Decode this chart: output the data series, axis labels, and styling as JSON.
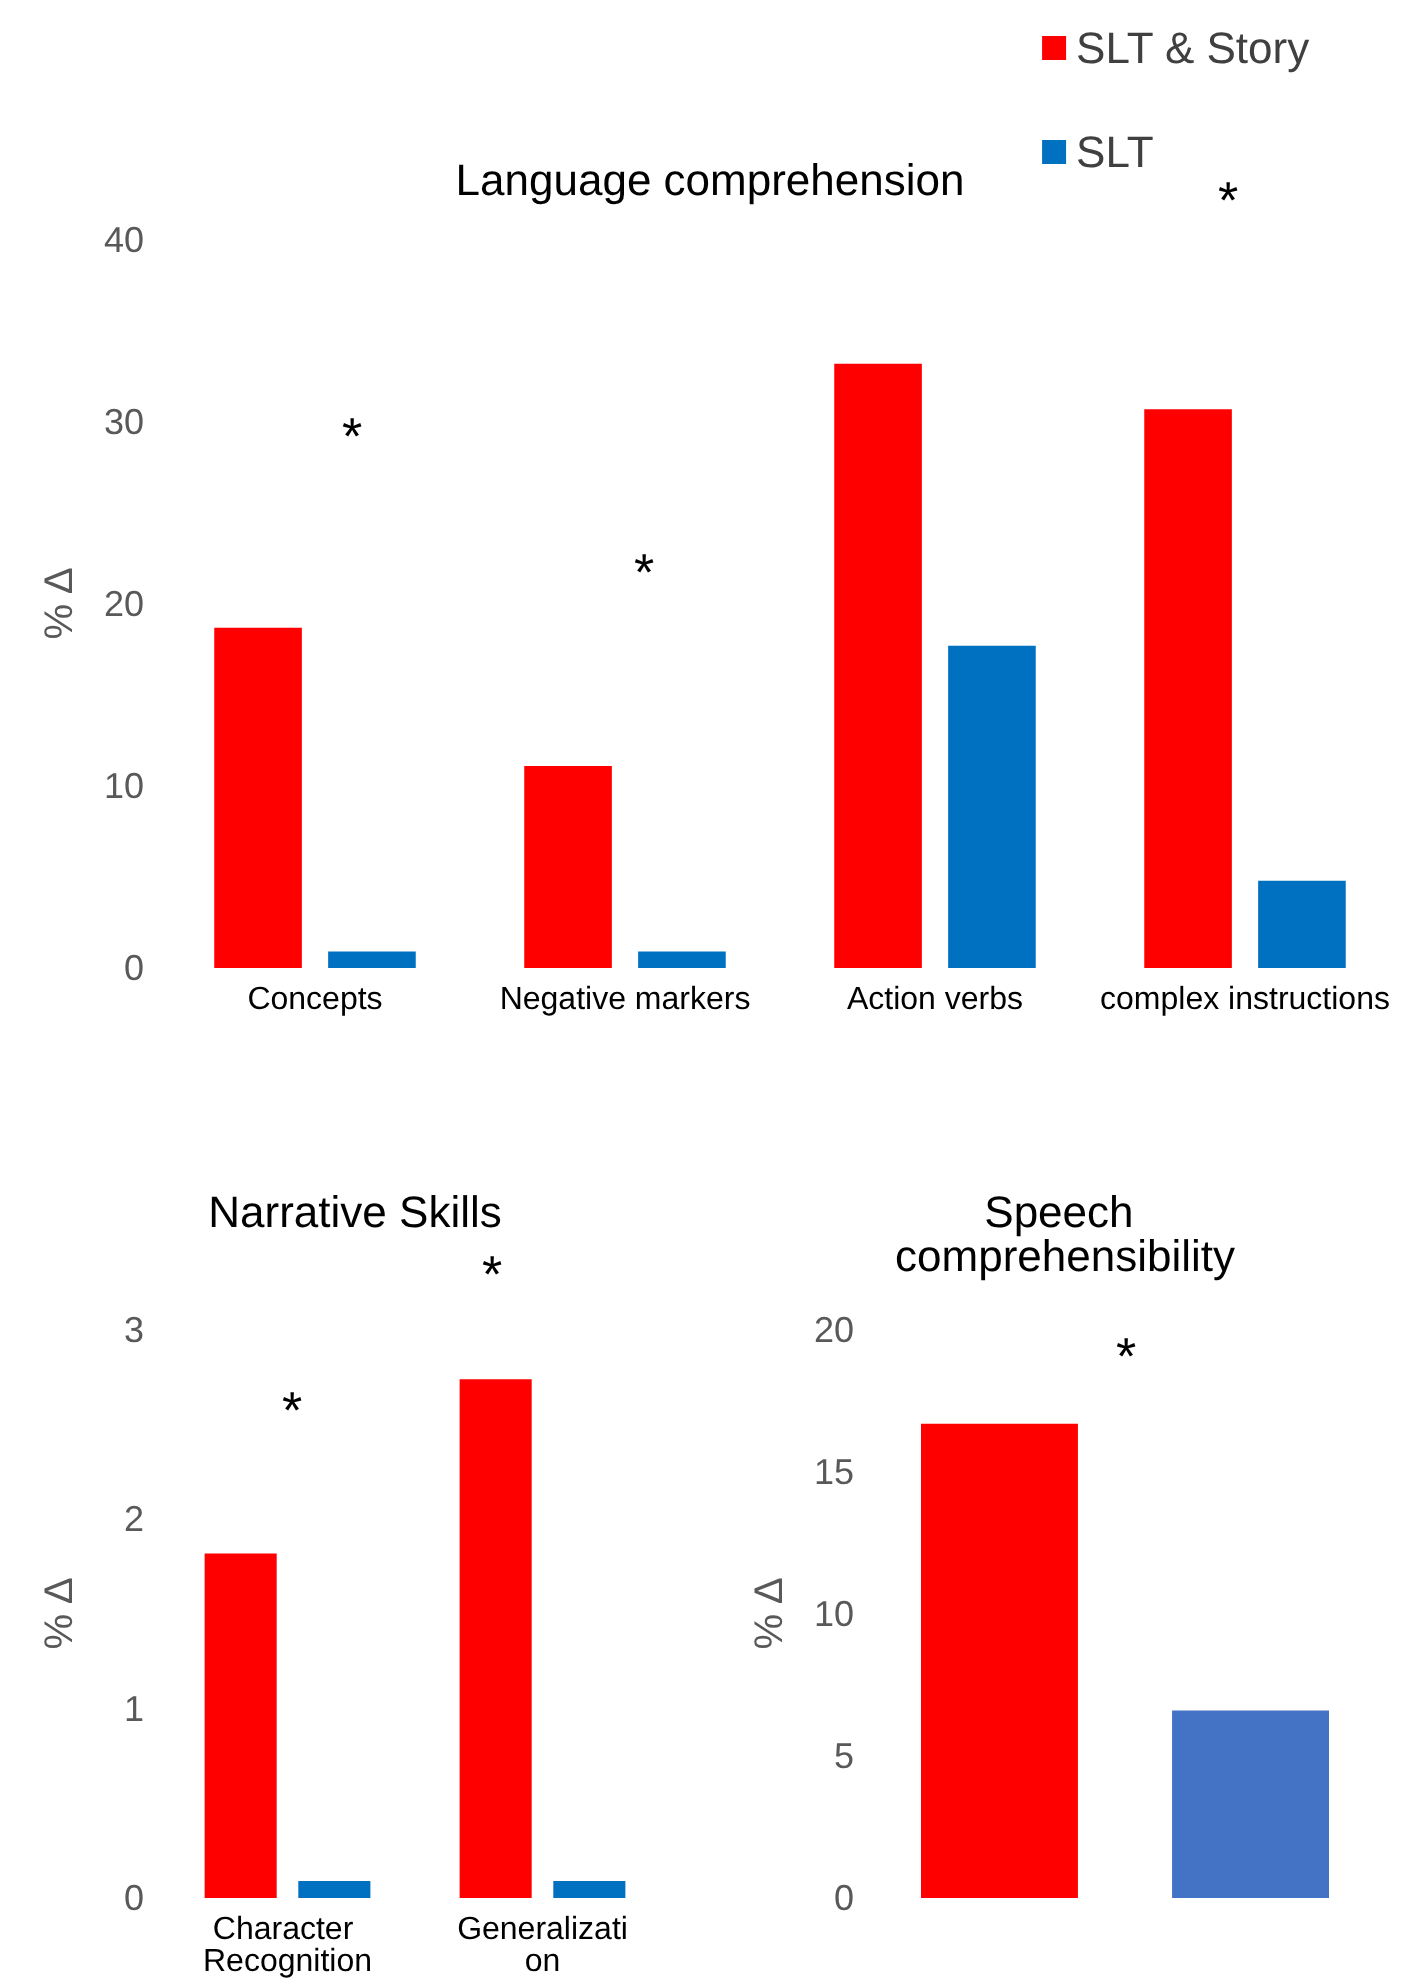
{
  "chart_data": [
    {
      "type": "bar",
      "title": "Language comprehension",
      "ylabel": "% ∆",
      "categories": [
        "Concepts",
        "Negative markers",
        "Action verbs",
        "complex instructions"
      ],
      "series": [
        {
          "name": "SLT & Story",
          "color": "#ff0000",
          "values": [
            18.7,
            11.1,
            33.2,
            30.7
          ]
        },
        {
          "name": "SLT",
          "color": "#0070c0",
          "values": [
            0.9,
            0.9,
            17.7,
            4.8
          ]
        }
      ],
      "ylim": [
        0,
        40
      ],
      "yticks": [
        0,
        10,
        20,
        30,
        40
      ],
      "grid": false,
      "legend": "top right",
      "annotations": [
        "*",
        "*",
        "*"
      ]
    },
    {
      "type": "bar",
      "title": "Narrative Skills",
      "ylabel": "% ∆",
      "categories": [
        "Character Recognition",
        "Generalization"
      ],
      "series": [
        {
          "color": "#ff0000",
          "values": [
            1.82,
            2.74
          ]
        },
        {
          "color": "#0070c0",
          "values": [
            0.09,
            0.09
          ]
        }
      ],
      "ylim": [
        0,
        3
      ],
      "yticks": [
        0,
        1,
        2,
        3
      ],
      "grid": false,
      "annotations": [
        "*",
        "*"
      ]
    },
    {
      "type": "bar",
      "title": "Speech comprehensibility",
      "ylabel": "% ∆",
      "categories": [
        null
      ],
      "series": [
        {
          "color": "#ff0000",
          "values": [
            16.7
          ]
        },
        {
          "color": "#4472c4",
          "values": [
            6.6
          ]
        }
      ],
      "ylim": [
        0,
        20
      ],
      "yticks": [
        0,
        5,
        10,
        15,
        20
      ],
      "grid": false,
      "annotations": [
        "*"
      ]
    }
  ]
}
